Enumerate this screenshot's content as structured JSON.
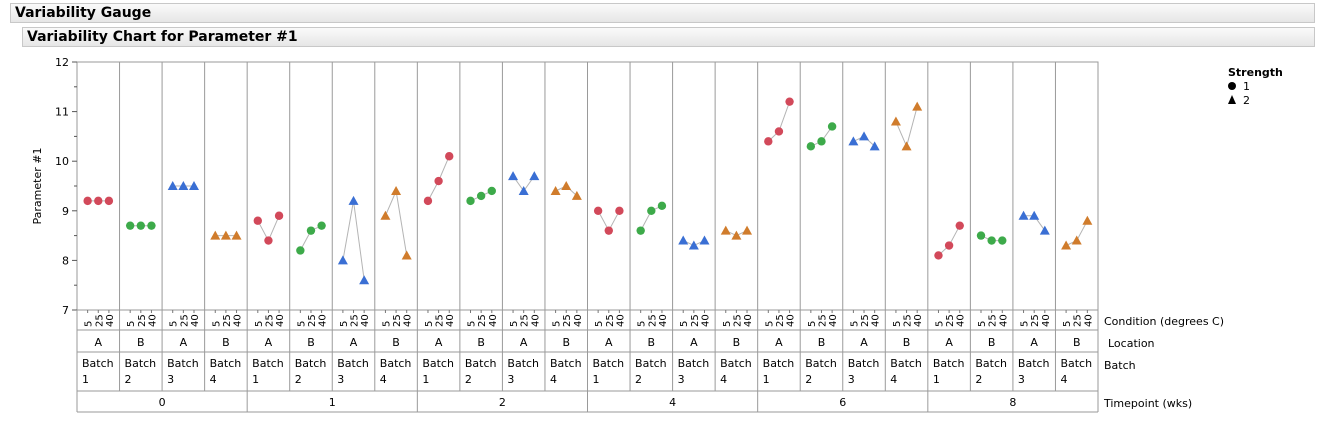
{
  "outline": {
    "outer_title": "Variability Gauge",
    "inner_title": "Variability Chart for Parameter #1"
  },
  "chart_data": {
    "type": "scatter",
    "title": "",
    "ylabel": "Parameter #1",
    "ylim": [
      7,
      12
    ],
    "yticks": [
      7,
      8,
      9,
      10,
      11,
      12
    ],
    "grouping_labels": [
      "Condition (degrees C)",
      "Location",
      "Batch",
      "Timepoint (wks)"
    ],
    "legend": {
      "title": "Strength",
      "placement": "top-right",
      "entries": [
        {
          "label": "1",
          "marker": "circle"
        },
        {
          "label": "2",
          "marker": "triangle"
        }
      ]
    },
    "conditions": [
      "5",
      "25",
      "40"
    ],
    "colors": {
      "Batch 1": "#d2495a",
      "Batch 2": "#3daa4a",
      "Batch 3": "#3a6fd4",
      "Batch 4": "#d07c2c",
      "line": "#b4b4b4"
    },
    "groups": [
      {
        "timepoint": "0",
        "location": "A",
        "batch_word": "Batch",
        "batch_num": "1",
        "strength": "1",
        "values": [
          9.2,
          9.2,
          9.2
        ]
      },
      {
        "timepoint": "0",
        "location": "B",
        "batch_word": "Batch",
        "batch_num": "2",
        "strength": "1",
        "values": [
          8.7,
          8.7,
          8.7
        ]
      },
      {
        "timepoint": "0",
        "location": "A",
        "batch_word": "Batch",
        "batch_num": "3",
        "strength": "2",
        "values": [
          9.5,
          9.5,
          9.5
        ]
      },
      {
        "timepoint": "0",
        "location": "B",
        "batch_word": "Batch",
        "batch_num": "4",
        "strength": "2",
        "values": [
          8.5,
          8.5,
          8.5
        ]
      },
      {
        "timepoint": "1",
        "location": "A",
        "batch_word": "Batch",
        "batch_num": "1",
        "strength": "1",
        "values": [
          8.8,
          8.4,
          8.9
        ]
      },
      {
        "timepoint": "1",
        "location": "B",
        "batch_word": "Batch",
        "batch_num": "2",
        "strength": "1",
        "values": [
          8.2,
          8.6,
          8.7
        ]
      },
      {
        "timepoint": "1",
        "location": "A",
        "batch_word": "Batch",
        "batch_num": "3",
        "strength": "2",
        "values": [
          8.0,
          9.2,
          7.6
        ]
      },
      {
        "timepoint": "1",
        "location": "B",
        "batch_word": "Batch",
        "batch_num": "4",
        "strength": "2",
        "values": [
          8.9,
          9.4,
          8.1
        ]
      },
      {
        "timepoint": "2",
        "location": "A",
        "batch_word": "Batch",
        "batch_num": "1",
        "strength": "1",
        "values": [
          9.2,
          9.6,
          10.1
        ]
      },
      {
        "timepoint": "2",
        "location": "B",
        "batch_word": "Batch",
        "batch_num": "2",
        "strength": "1",
        "values": [
          9.2,
          9.3,
          9.4
        ]
      },
      {
        "timepoint": "2",
        "location": "A",
        "batch_word": "Batch",
        "batch_num": "3",
        "strength": "2",
        "values": [
          9.7,
          9.4,
          9.7
        ]
      },
      {
        "timepoint": "2",
        "location": "B",
        "batch_word": "Batch",
        "batch_num": "4",
        "strength": "2",
        "values": [
          9.4,
          9.5,
          9.3
        ]
      },
      {
        "timepoint": "4",
        "location": "A",
        "batch_word": "Batch",
        "batch_num": "1",
        "strength": "1",
        "values": [
          9.0,
          8.6,
          9.0
        ]
      },
      {
        "timepoint": "4",
        "location": "B",
        "batch_word": "Batch",
        "batch_num": "2",
        "strength": "1",
        "values": [
          8.6,
          9.0,
          9.1
        ]
      },
      {
        "timepoint": "4",
        "location": "A",
        "batch_word": "Batch",
        "batch_num": "3",
        "strength": "2",
        "values": [
          8.4,
          8.3,
          8.4
        ]
      },
      {
        "timepoint": "4",
        "location": "B",
        "batch_word": "Batch",
        "batch_num": "4",
        "strength": "2",
        "values": [
          8.6,
          8.5,
          8.6
        ]
      },
      {
        "timepoint": "6",
        "location": "A",
        "batch_word": "Batch",
        "batch_num": "1",
        "strength": "1",
        "values": [
          10.4,
          10.6,
          11.2
        ]
      },
      {
        "timepoint": "6",
        "location": "B",
        "batch_word": "Batch",
        "batch_num": "2",
        "strength": "1",
        "values": [
          10.3,
          10.4,
          10.7
        ]
      },
      {
        "timepoint": "6",
        "location": "A",
        "batch_word": "Batch",
        "batch_num": "3",
        "strength": "2",
        "values": [
          10.4,
          10.5,
          10.3
        ]
      },
      {
        "timepoint": "6",
        "location": "B",
        "batch_word": "Batch",
        "batch_num": "4",
        "strength": "2",
        "values": [
          10.8,
          10.3,
          11.1
        ]
      },
      {
        "timepoint": "8",
        "location": "A",
        "batch_word": "Batch",
        "batch_num": "1",
        "strength": "1",
        "values": [
          8.1,
          8.3,
          8.7
        ]
      },
      {
        "timepoint": "8",
        "location": "B",
        "batch_word": "Batch",
        "batch_num": "2",
        "strength": "1",
        "values": [
          8.5,
          8.4,
          8.4
        ]
      },
      {
        "timepoint": "8",
        "location": "A",
        "batch_word": "Batch",
        "batch_num": "3",
        "strength": "2",
        "values": [
          8.9,
          8.9,
          8.6
        ]
      },
      {
        "timepoint": "8",
        "location": "B",
        "batch_word": "Batch",
        "batch_num": "4",
        "strength": "2",
        "values": [
          8.3,
          8.4,
          8.8
        ]
      }
    ],
    "timepoints": [
      "0",
      "1",
      "2",
      "4",
      "6",
      "8"
    ]
  }
}
